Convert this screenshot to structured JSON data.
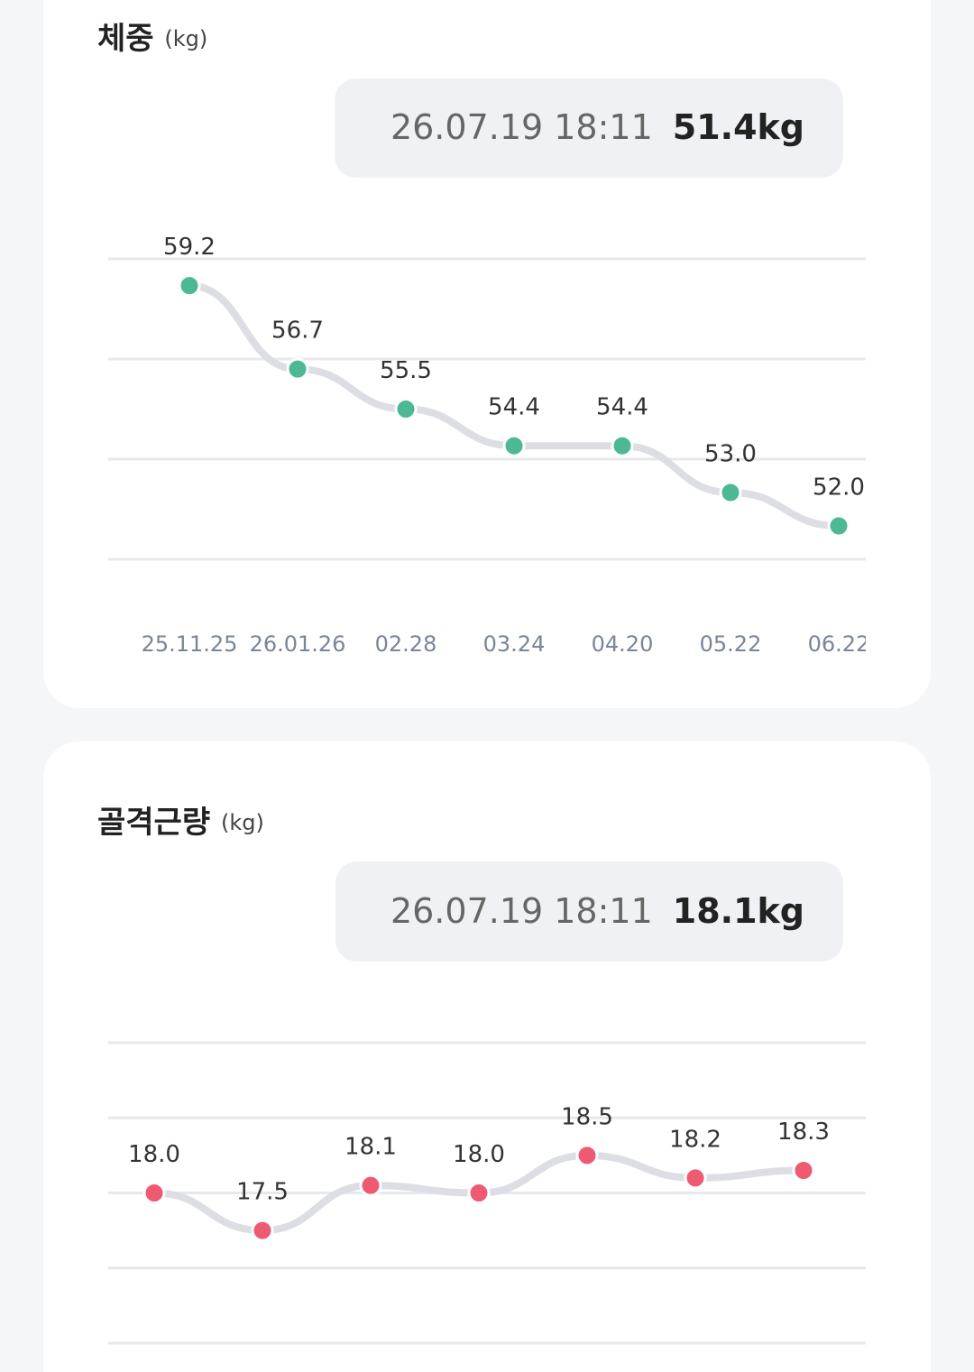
{
  "chart_data": [
    {
      "type": "line",
      "title": "체중",
      "unit": "(kg)",
      "summary_time": "26.07.19 18:11",
      "summary_value": "51.4kg",
      "categories": [
        "25.11.25",
        "26.01.26",
        "02.28",
        "03.24",
        "04.20",
        "05.22",
        "06.22"
      ],
      "series": [
        {
          "color": "#4cb894",
          "values": [
            59.2,
            56.7,
            55.5,
            54.4,
            54.4,
            53.0,
            52.0
          ],
          "value_labels": [
            "59.2",
            "56.7",
            "55.5",
            "54.4",
            "54.4",
            "53.0",
            "52.0"
          ]
        }
      ],
      "ylim": [
        51,
        60
      ],
      "yticks": [
        51,
        54,
        57,
        60
      ],
      "grid": true
    },
    {
      "type": "line",
      "title": "골격근량",
      "unit": "(kg)",
      "summary_time": "26.07.19 18:11",
      "summary_value": "18.1kg",
      "series": [
        {
          "color": "#ef5a73",
          "values": [
            18.0,
            17.5,
            18.1,
            18.0,
            18.5,
            18.2,
            18.3
          ],
          "value_labels": [
            "18.0",
            "17.5",
            "18.1",
            "18.0",
            "18.5",
            "18.2",
            "18.3"
          ]
        }
      ],
      "ylim": [
        16,
        20
      ],
      "yticks": [
        16,
        17,
        18,
        19,
        20
      ],
      "grid": true
    }
  ]
}
